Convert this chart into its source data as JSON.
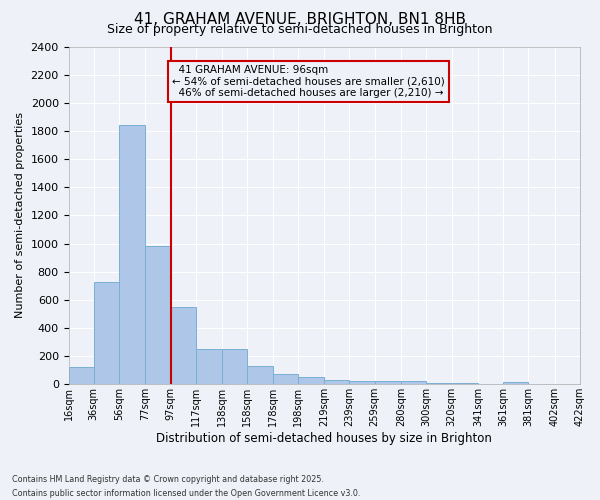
{
  "title": "41, GRAHAM AVENUE, BRIGHTON, BN1 8HB",
  "subtitle": "Size of property relative to semi-detached houses in Brighton",
  "xlabel": "Distribution of semi-detached houses by size in Brighton",
  "ylabel": "Number of semi-detached properties",
  "property_size": 96,
  "property_label": "41 GRAHAM AVENUE: 96sqm",
  "pct_smaller": 54,
  "count_smaller": 2610,
  "pct_larger": 46,
  "count_larger": 2210,
  "bin_edges": [
    16,
    36,
    56,
    77,
    97,
    117,
    138,
    158,
    178,
    198,
    219,
    239,
    259,
    280,
    300,
    320,
    341,
    361,
    381,
    402,
    422
  ],
  "bar_heights": [
    120,
    730,
    1840,
    980,
    550,
    250,
    250,
    130,
    70,
    55,
    30,
    20,
    20,
    20,
    10,
    10,
    5,
    15,
    5,
    5
  ],
  "bar_color": "#aec6e8",
  "bar_edge_color": "#7aafd4",
  "vline_x": 97,
  "vline_color": "#cc0000",
  "annotation_box_color": "#cc0000",
  "background_color": "#eef2f8",
  "grid_color": "#ffffff",
  "footer_text": "Contains HM Land Registry data © Crown copyright and database right 2025.\nContains public sector information licensed under the Open Government Licence v3.0.",
  "ylim": [
    0,
    2400
  ],
  "yticks": [
    0,
    200,
    400,
    600,
    800,
    1000,
    1200,
    1400,
    1600,
    1800,
    2000,
    2200,
    2400
  ]
}
